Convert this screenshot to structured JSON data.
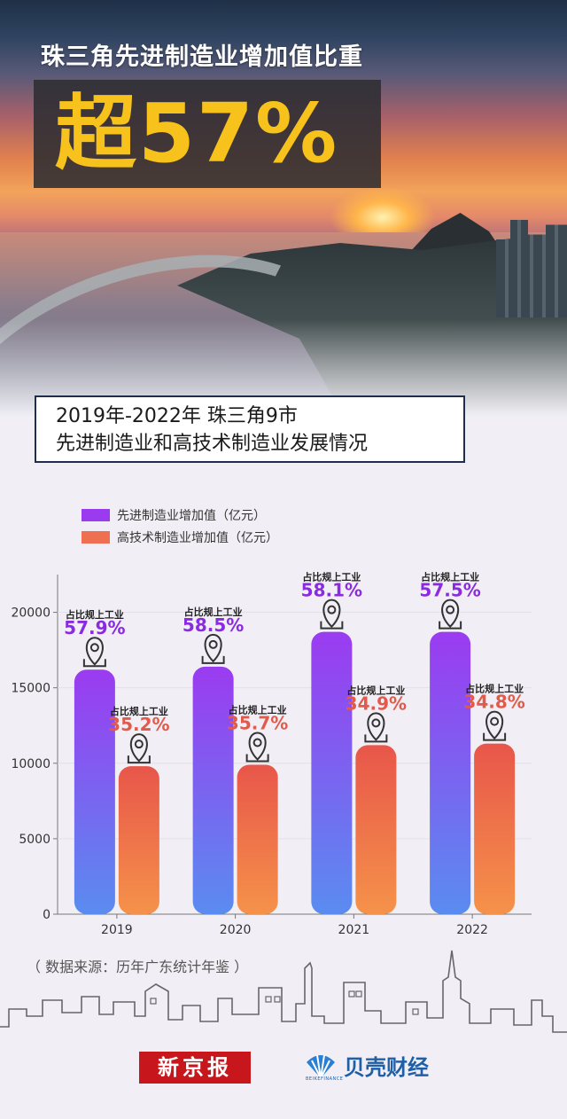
{
  "header": {
    "headline": "珠三角先进制造业增加值比重",
    "big": "超57%"
  },
  "subtitle": {
    "line1": "2019年-2022年 珠三角9市",
    "line2": "先进制造业和高技术制造业发展情况"
  },
  "colors": {
    "purple_top": "#9b3bf0",
    "purple_bottom": "#5a8cf0",
    "orange_top": "#e8564a",
    "orange_bottom": "#f5924a",
    "purple_label": "#8a2be2",
    "orange_label": "#e25b4a"
  },
  "chart_data": {
    "type": "bar",
    "categories": [
      "2019",
      "2020",
      "2021",
      "2022"
    ],
    "series": [
      {
        "name": "先进制造业增加值（亿元）",
        "values": [
          16200,
          16400,
          18700,
          18700
        ],
        "share_label": "占比规上工业",
        "shares": [
          "57.9%",
          "58.5%",
          "58.1%",
          "57.5%"
        ]
      },
      {
        "name": "高技术制造业增加值（亿元）",
        "values": [
          9800,
          9900,
          11200,
          11300
        ],
        "share_label": "占比规上工业",
        "shares": [
          "35.2%",
          "35.7%",
          "34.9%",
          "34.8%"
        ]
      }
    ],
    "ylim": [
      0,
      22500
    ],
    "yticks": [
      0,
      5000,
      10000,
      15000,
      20000
    ],
    "grid": true,
    "legend": "top-left"
  },
  "source": "（ 数据来源：历年广东统计年鉴 ）",
  "logos": {
    "xjb": "新京报",
    "beike": "贝壳财经",
    "beike_sub": "BEIKEFINANCE"
  }
}
